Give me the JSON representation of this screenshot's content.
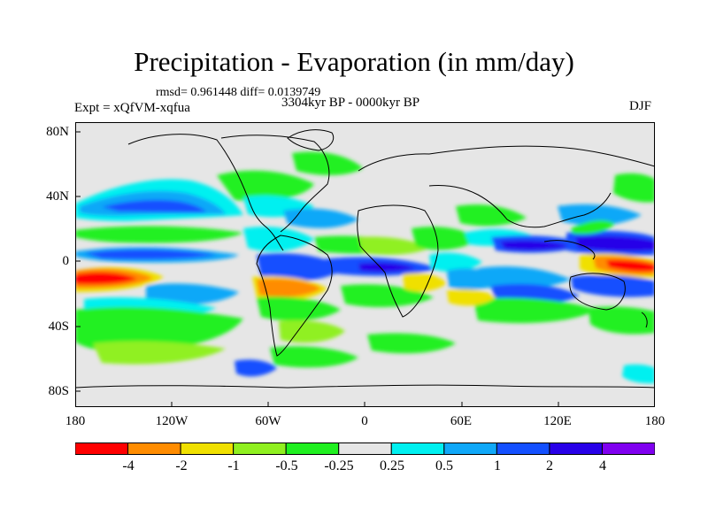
{
  "title": "Precipitation - Evaporation (in mm/day)",
  "stats": "rmsd= 0.961448 diff= 0.0139749",
  "period": "3304kyr BP - 0000kyr BP",
  "experiment": "Expt = xQfVM-xqfua",
  "season": "DJF",
  "lat_axis": {
    "labels": [
      "80N",
      "40N",
      "0",
      "40S",
      "80S"
    ],
    "values": [
      80,
      40,
      0,
      -40,
      -80
    ]
  },
  "lon_axis": {
    "labels": [
      "180",
      "120W",
      "60W",
      "0",
      "60E",
      "120E",
      "180"
    ],
    "values": [
      -180,
      -120,
      -60,
      0,
      60,
      120,
      180
    ]
  },
  "colorbar": {
    "labels": [
      "-4",
      "-2",
      "-1",
      "-0.5",
      "-0.25",
      "0.25",
      "0.5",
      "1",
      "2",
      "4"
    ],
    "colors": [
      "#ff0000",
      "#ff8c00",
      "#f0e000",
      "#90f020",
      "#20f020",
      "#e6e6e6",
      "#00f0f0",
      "#10a8f8",
      "#1450ff",
      "#2800e8",
      "#8000f0"
    ]
  },
  "colors": {
    "land_outline": "#000000",
    "ocean_neutral": "#e6e6e6"
  }
}
